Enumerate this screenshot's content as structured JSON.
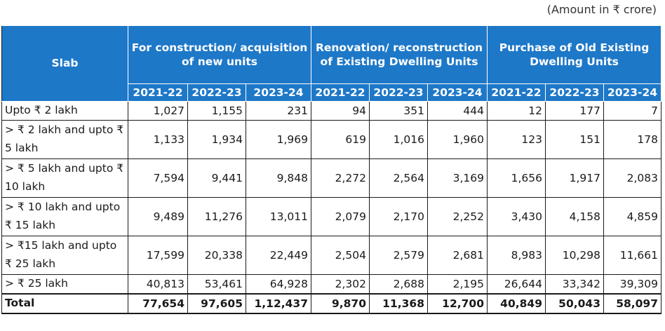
{
  "caption": "(Amount in ₹ crore)",
  "headers": {
    "slab": "Slab",
    "groups": [
      "For construction/ acquisition of new units",
      "Renovation/ reconstruction of Existing Dwelling Units",
      "Purchase of Old Existing Dwelling Units"
    ],
    "years": [
      "2021-22",
      "2022-23",
      "2023-24"
    ]
  },
  "rows": [
    {
      "slab": "Upto ₹ 2 lakh",
      "values": [
        "1,027",
        "1,155",
        "231",
        "94",
        "351",
        "444",
        "12",
        "177",
        "7"
      ]
    },
    {
      "slab": "> ₹ 2 lakh and upto ₹ 5 lakh",
      "values": [
        "1,133",
        "1,934",
        "1,969",
        "619",
        "1,016",
        "1,960",
        "123",
        "151",
        "178"
      ]
    },
    {
      "slab": "> ₹ 5 lakh and upto ₹ 10 lakh",
      "values": [
        "7,594",
        "9,441",
        "9,848",
        "2,272",
        "2,564",
        "3,169",
        "1,656",
        "1,917",
        "2,083"
      ]
    },
    {
      "slab": "> ₹ 10 lakh and upto ₹ 15 lakh",
      "values": [
        "9,489",
        "11,276",
        "13,011",
        "2,079",
        "2,170",
        "2,252",
        "3,430",
        "4,158",
        "4,859"
      ]
    },
    {
      "slab": "> ₹15 lakh and upto ₹ 25 lakh",
      "values": [
        "17,599",
        "20,338",
        "22,449",
        "2,504",
        "2,579",
        "2,681",
        "8,983",
        "10,298",
        "11,661"
      ]
    },
    {
      "slab": "> ₹ 25 lakh",
      "values": [
        "40,813",
        "53,461",
        "64,928",
        "2,302",
        "2,688",
        "2,195",
        "26,644",
        "33,342",
        "39,309"
      ]
    }
  ],
  "total": {
    "slab": "Total",
    "values": [
      "77,654",
      "97,605",
      "1,12,437",
      "9,870",
      "11,368",
      "12,700",
      "40,849",
      "50,043",
      "58,097"
    ]
  }
}
